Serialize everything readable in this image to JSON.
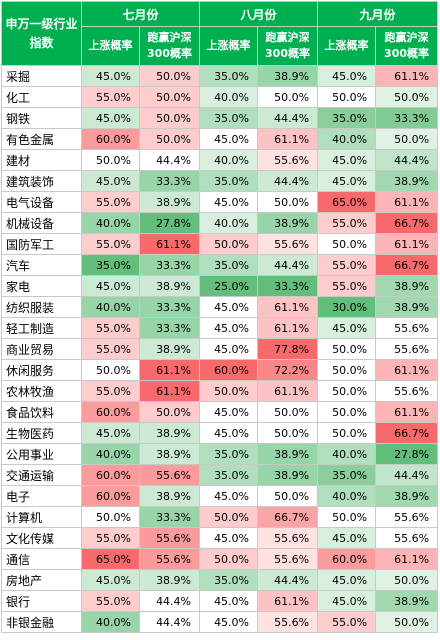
{
  "header": {
    "corner": "申万一级行业指数",
    "months": [
      "七月份",
      "八月份",
      "九月份"
    ],
    "sub": [
      "上涨概率",
      "跑赢沪深300概率"
    ]
  },
  "colors": {
    "header_bg": "#00b050",
    "green_strong": "#63be7b",
    "red_strong": "#f8696b",
    "neutral": "#ffffff"
  },
  "rows": [
    {
      "name": "采掘",
      "v": [
        "45.0%",
        "50.0%",
        "35.0%",
        "38.9%",
        "45.0%",
        "61.1%"
      ]
    },
    {
      "name": "化工",
      "v": [
        "55.0%",
        "50.0%",
        "40.0%",
        "50.0%",
        "50.0%",
        "50.0%"
      ]
    },
    {
      "name": "钢铁",
      "v": [
        "45.0%",
        "50.0%",
        "35.0%",
        "44.4%",
        "35.0%",
        "33.3%"
      ]
    },
    {
      "name": "有色金属",
      "v": [
        "60.0%",
        "50.0%",
        "45.0%",
        "61.1%",
        "40.0%",
        "50.0%"
      ]
    },
    {
      "name": "建材",
      "v": [
        "50.0%",
        "44.4%",
        "40.0%",
        "55.6%",
        "45.0%",
        "44.4%"
      ]
    },
    {
      "name": "建筑装饰",
      "v": [
        "45.0%",
        "33.3%",
        "35.0%",
        "44.4%",
        "45.0%",
        "38.9%"
      ]
    },
    {
      "name": "电气设备",
      "v": [
        "55.0%",
        "38.9%",
        "45.0%",
        "50.0%",
        "65.0%",
        "61.1%"
      ]
    },
    {
      "name": "机械设备",
      "v": [
        "40.0%",
        "27.8%",
        "40.0%",
        "38.9%",
        "55.0%",
        "66.7%"
      ]
    },
    {
      "name": "国防军工",
      "v": [
        "55.0%",
        "61.1%",
        "50.0%",
        "55.6%",
        "50.0%",
        "61.1%"
      ]
    },
    {
      "name": "汽车",
      "v": [
        "35.0%",
        "33.3%",
        "35.0%",
        "44.4%",
        "55.0%",
        "66.7%"
      ]
    },
    {
      "name": "家电",
      "v": [
        "45.0%",
        "38.9%",
        "25.0%",
        "33.3%",
        "55.0%",
        "38.9%"
      ]
    },
    {
      "name": "纺织服装",
      "v": [
        "40.0%",
        "33.3%",
        "45.0%",
        "61.1%",
        "30.0%",
        "38.9%"
      ]
    },
    {
      "name": "轻工制造",
      "v": [
        "55.0%",
        "33.3%",
        "45.0%",
        "61.1%",
        "45.0%",
        "55.6%"
      ]
    },
    {
      "name": "商业贸易",
      "v": [
        "55.0%",
        "38.9%",
        "45.0%",
        "77.8%",
        "50.0%",
        "55.6%"
      ]
    },
    {
      "name": "休闲服务",
      "v": [
        "50.0%",
        "61.1%",
        "60.0%",
        "72.2%",
        "50.0%",
        "61.1%"
      ]
    },
    {
      "name": "农林牧渔",
      "v": [
        "55.0%",
        "61.1%",
        "50.0%",
        "61.1%",
        "50.0%",
        "55.6%"
      ]
    },
    {
      "name": "食品饮料",
      "v": [
        "60.0%",
        "50.0%",
        "45.0%",
        "50.0%",
        "50.0%",
        "61.1%"
      ]
    },
    {
      "name": "生物医药",
      "v": [
        "45.0%",
        "38.9%",
        "45.0%",
        "50.0%",
        "50.0%",
        "66.7%"
      ]
    },
    {
      "name": "公用事业",
      "v": [
        "40.0%",
        "38.9%",
        "35.0%",
        "38.9%",
        "40.0%",
        "27.8%"
      ]
    },
    {
      "name": "交通运输",
      "v": [
        "60.0%",
        "55.6%",
        "35.0%",
        "38.9%",
        "35.0%",
        "44.4%"
      ]
    },
    {
      "name": "电子",
      "v": [
        "60.0%",
        "38.9%",
        "45.0%",
        "50.0%",
        "40.0%",
        "38.9%"
      ]
    },
    {
      "name": "计算机",
      "v": [
        "50.0%",
        "33.3%",
        "50.0%",
        "66.7%",
        "50.0%",
        "55.6%"
      ]
    },
    {
      "name": "文化传媒",
      "v": [
        "55.0%",
        "55.6%",
        "45.0%",
        "55.6%",
        "45.0%",
        "55.6%"
      ]
    },
    {
      "name": "通信",
      "v": [
        "65.0%",
        "55.6%",
        "50.0%",
        "55.6%",
        "60.0%",
        "61.1%"
      ]
    },
    {
      "name": "房地产",
      "v": [
        "45.0%",
        "38.9%",
        "35.0%",
        "44.4%",
        "45.0%",
        "50.0%"
      ]
    },
    {
      "name": "银行",
      "v": [
        "55.0%",
        "44.4%",
        "45.0%",
        "61.1%",
        "45.0%",
        "38.9%"
      ]
    },
    {
      "name": "非银金融",
      "v": [
        "40.0%",
        "44.4%",
        "45.0%",
        "55.6%",
        "55.0%",
        "50.0%"
      ]
    }
  ]
}
